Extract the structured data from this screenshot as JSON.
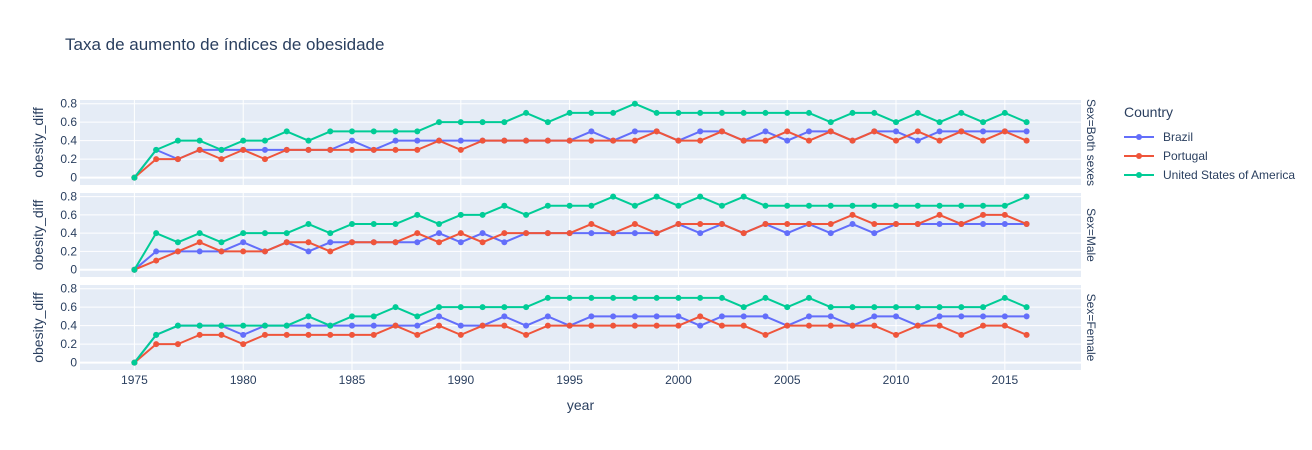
{
  "chart_data": {
    "type": "line",
    "title": "Taxa de aumento de índices de obesidade",
    "xlabel": "year",
    "ylabel": "obesity_diff",
    "x": [
      1975,
      1976,
      1977,
      1978,
      1979,
      1980,
      1981,
      1982,
      1983,
      1984,
      1985,
      1986,
      1987,
      1988,
      1989,
      1990,
      1991,
      1992,
      1993,
      1994,
      1995,
      1996,
      1997,
      1998,
      1999,
      2000,
      2001,
      2002,
      2003,
      2004,
      2005,
      2006,
      2007,
      2008,
      2009,
      2010,
      2011,
      2012,
      2013,
      2014,
      2015,
      2016
    ],
    "xlim": [
      1972.5,
      2018.5
    ],
    "ylim": [
      -0.08,
      0.84
    ],
    "xticks": [
      1975,
      1980,
      1985,
      1990,
      1995,
      2000,
      2005,
      2010,
      2015
    ],
    "yticks": [
      0,
      0.2,
      0.4,
      0.6,
      0.8
    ],
    "ytick_labels": [
      "0",
      "0.2",
      "0.4",
      "0.6",
      "0.8"
    ],
    "legend": {
      "title": "Country",
      "placement": "right"
    },
    "series_defs": [
      {
        "name": "Brazil",
        "color": "#636efa"
      },
      {
        "name": "Portugal",
        "color": "#ef553b"
      },
      {
        "name": "United States of America",
        "color": "#00cc96"
      }
    ],
    "facets": [
      {
        "label": "Sex=Both sexes",
        "series": [
          {
            "name": "Brazil",
            "values": [
              0,
              0.3,
              0.2,
              0.3,
              0.3,
              0.3,
              0.3,
              0.3,
              0.3,
              0.3,
              0.4,
              0.3,
              0.4,
              0.4,
              0.4,
              0.4,
              0.4,
              0.4,
              0.4,
              0.4,
              0.4,
              0.5,
              0.4,
              0.5,
              0.5,
              0.4,
              0.5,
              0.5,
              0.4,
              0.5,
              0.4,
              0.5,
              0.5,
              0.4,
              0.5,
              0.5,
              0.4,
              0.5,
              0.5,
              0.5,
              0.5,
              0.5
            ]
          },
          {
            "name": "Portugal",
            "values": [
              0,
              0.2,
              0.2,
              0.3,
              0.2,
              0.3,
              0.2,
              0.3,
              0.3,
              0.3,
              0.3,
              0.3,
              0.3,
              0.3,
              0.4,
              0.3,
              0.4,
              0.4,
              0.4,
              0.4,
              0.4,
              0.4,
              0.4,
              0.4,
              0.5,
              0.4,
              0.4,
              0.5,
              0.4,
              0.4,
              0.5,
              0.4,
              0.5,
              0.4,
              0.5,
              0.4,
              0.5,
              0.4,
              0.5,
              0.4,
              0.5,
              0.4
            ]
          },
          {
            "name": "United States of America",
            "values": [
              0,
              0.3,
              0.4,
              0.4,
              0.3,
              0.4,
              0.4,
              0.5,
              0.4,
              0.5,
              0.5,
              0.5,
              0.5,
              0.5,
              0.6,
              0.6,
              0.6,
              0.6,
              0.7,
              0.6,
              0.7,
              0.7,
              0.7,
              0.8,
              0.7,
              0.7,
              0.7,
              0.7,
              0.7,
              0.7,
              0.7,
              0.7,
              0.6,
              0.7,
              0.7,
              0.6,
              0.7,
              0.6,
              0.7,
              0.6,
              0.7,
              0.6
            ]
          }
        ]
      },
      {
        "label": "Sex=Male",
        "series": [
          {
            "name": "Brazil",
            "values": [
              0,
              0.2,
              0.2,
              0.2,
              0.2,
              0.3,
              0.2,
              0.3,
              0.2,
              0.3,
              0.3,
              0.3,
              0.3,
              0.3,
              0.4,
              0.3,
              0.4,
              0.3,
              0.4,
              0.4,
              0.4,
              0.4,
              0.4,
              0.4,
              0.4,
              0.5,
              0.4,
              0.5,
              0.4,
              0.5,
              0.4,
              0.5,
              0.4,
              0.5,
              0.4,
              0.5,
              0.5,
              0.5,
              0.5,
              0.5,
              0.5,
              0.5
            ]
          },
          {
            "name": "Portugal",
            "values": [
              0,
              0.1,
              0.2,
              0.3,
              0.2,
              0.2,
              0.2,
              0.3,
              0.3,
              0.2,
              0.3,
              0.3,
              0.3,
              0.4,
              0.3,
              0.4,
              0.3,
              0.4,
              0.4,
              0.4,
              0.4,
              0.5,
              0.4,
              0.5,
              0.4,
              0.5,
              0.5,
              0.5,
              0.4,
              0.5,
              0.5,
              0.5,
              0.5,
              0.6,
              0.5,
              0.5,
              0.5,
              0.6,
              0.5,
              0.6,
              0.6,
              0.5
            ]
          },
          {
            "name": "United States of America",
            "values": [
              0,
              0.4,
              0.3,
              0.4,
              0.3,
              0.4,
              0.4,
              0.4,
              0.5,
              0.4,
              0.5,
              0.5,
              0.5,
              0.6,
              0.5,
              0.6,
              0.6,
              0.7,
              0.6,
              0.7,
              0.7,
              0.7,
              0.8,
              0.7,
              0.8,
              0.7,
              0.8,
              0.7,
              0.8,
              0.7,
              0.7,
              0.7,
              0.7,
              0.7,
              0.7,
              0.7,
              0.7,
              0.7,
              0.7,
              0.7,
              0.7,
              0.8
            ]
          }
        ]
      },
      {
        "label": "Sex=Female",
        "series": [
          {
            "name": "Brazil",
            "values": [
              0,
              0.3,
              0.4,
              0.4,
              0.4,
              0.3,
              0.4,
              0.4,
              0.4,
              0.4,
              0.4,
              0.4,
              0.4,
              0.4,
              0.5,
              0.4,
              0.4,
              0.5,
              0.4,
              0.5,
              0.4,
              0.5,
              0.5,
              0.5,
              0.5,
              0.5,
              0.4,
              0.5,
              0.5,
              0.5,
              0.4,
              0.5,
              0.5,
              0.4,
              0.5,
              0.5,
              0.4,
              0.5,
              0.5,
              0.5,
              0.5,
              0.5
            ]
          },
          {
            "name": "Portugal",
            "values": [
              0,
              0.2,
              0.2,
              0.3,
              0.3,
              0.2,
              0.3,
              0.3,
              0.3,
              0.3,
              0.3,
              0.3,
              0.4,
              0.3,
              0.4,
              0.3,
              0.4,
              0.4,
              0.3,
              0.4,
              0.4,
              0.4,
              0.4,
              0.4,
              0.4,
              0.4,
              0.5,
              0.4,
              0.4,
              0.3,
              0.4,
              0.4,
              0.4,
              0.4,
              0.4,
              0.3,
              0.4,
              0.4,
              0.3,
              0.4,
              0.4,
              0.3
            ]
          },
          {
            "name": "United States of America",
            "values": [
              0,
              0.3,
              0.4,
              0.4,
              0.4,
              0.4,
              0.4,
              0.4,
              0.5,
              0.4,
              0.5,
              0.5,
              0.6,
              0.5,
              0.6,
              0.6,
              0.6,
              0.6,
              0.6,
              0.7,
              0.7,
              0.7,
              0.7,
              0.7,
              0.7,
              0.7,
              0.7,
              0.7,
              0.6,
              0.7,
              0.6,
              0.7,
              0.6,
              0.6,
              0.6,
              0.6,
              0.6,
              0.6,
              0.6,
              0.6,
              0.7,
              0.6
            ]
          }
        ]
      }
    ]
  }
}
